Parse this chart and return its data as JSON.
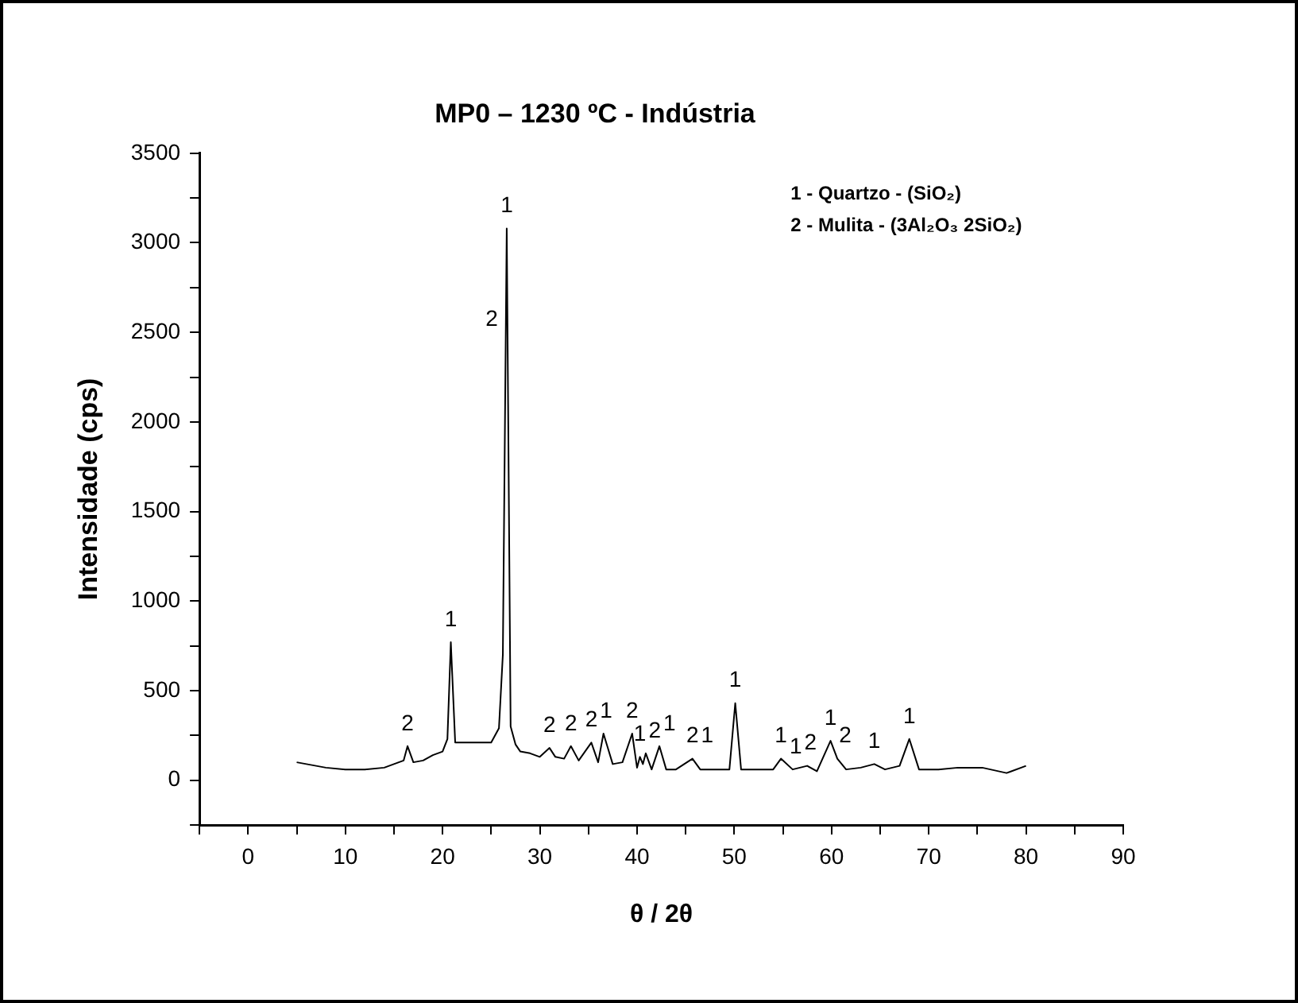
{
  "chart_data": {
    "type": "line",
    "title": "MP0 – 1230 ºC - Indústria",
    "xlabel": "θ / 2θ",
    "ylabel": "Intensidade (cps)",
    "x": [
      5,
      6,
      8,
      10,
      12,
      14,
      15,
      16,
      16.4,
      17,
      18,
      19,
      20,
      20.5,
      20.85,
      21.3,
      22,
      23,
      24,
      25,
      25.8,
      26.2,
      26.6,
      27,
      27.5,
      28,
      29,
      30,
      31,
      31.6,
      32.5,
      33.2,
      34,
      35.3,
      36,
      36.55,
      37.5,
      38.5,
      39.5,
      40,
      40.3,
      40.6,
      40.9,
      41.5,
      42.3,
      43,
      44,
      45.7,
      46.5,
      48,
      49.5,
      50.1,
      50.7,
      52,
      54,
      54.8,
      56,
      57.5,
      58.5,
      59.9,
      60.6,
      61.5,
      63,
      64.4,
      65.5,
      67,
      68,
      69,
      71,
      73,
      75.5,
      78,
      80
    ],
    "series": [
      {
        "color": "#000000",
        "values": [
          100,
          90,
          70,
          60,
          60,
          70,
          90,
          110,
          190,
          100,
          110,
          140,
          160,
          230,
          770,
          210,
          210,
          210,
          210,
          210,
          290,
          700,
          3080,
          300,
          200,
          160,
          150,
          130,
          180,
          130,
          120,
          190,
          110,
          210,
          100,
          260,
          90,
          100,
          260,
          70,
          130,
          90,
          150,
          60,
          190,
          60,
          60,
          120,
          60,
          60,
          60,
          430,
          60,
          60,
          60,
          120,
          60,
          80,
          50,
          220,
          120,
          60,
          70,
          90,
          60,
          80,
          230,
          60,
          60,
          70,
          70,
          40,
          80
        ]
      }
    ],
    "xlim": [
      -5,
      90
    ],
    "xticks": [
      {
        "value": -5,
        "label": null
      },
      0,
      {
        "value": 5,
        "label": null
      },
      10,
      {
        "value": 15,
        "label": null
      },
      20,
      {
        "value": 25,
        "label": null
      },
      30,
      {
        "value": 35,
        "label": null
      },
      40,
      {
        "value": 45,
        "label": null
      },
      50,
      {
        "value": 55,
        "label": null
      },
      60,
      {
        "value": 65,
        "label": null
      },
      70,
      {
        "value": 75,
        "label": null
      },
      80,
      {
        "value": 85,
        "label": null
      },
      90
    ],
    "ylim": [
      -250,
      3500
    ],
    "yticks": [
      {
        "value": -250,
        "label": null
      },
      0,
      {
        "value": 250,
        "label": null
      },
      500,
      {
        "value": 750,
        "label": null
      },
      1000,
      {
        "value": 1250,
        "label": null
      },
      1500,
      {
        "value": 1750,
        "label": null
      },
      2000,
      {
        "value": 2250,
        "label": null
      },
      2500,
      {
        "value": 2750,
        "label": null
      },
      3000,
      {
        "value": 3250,
        "label": null
      },
      3500
    ],
    "grid": false,
    "legend": false,
    "marker": "none",
    "line_style": "solid",
    "annotations": [
      "1 - Quartzo - (SiO₂)",
      "2 - Mulita - (3Al₂O₃ 2SiO₂)",
      {
        "text": "2",
        "x": 16.4,
        "y": 190
      },
      {
        "text": "1",
        "x": 20.85,
        "y": 770
      },
      {
        "text": "2",
        "x": 26.51,
        "y": 2570
      },
      {
        "text": "1",
        "x": 26.6,
        "y": 3080
      },
      {
        "text": "2",
        "x": 31,
        "y": 180
      },
      {
        "text": "2",
        "x": 33.2,
        "y": 190
      },
      {
        "text": "2",
        "x": 35.3,
        "y": 210
      },
      {
        "text": "1",
        "x": 36.55,
        "y": 260
      },
      {
        "text": "2",
        "x": 39.5,
        "y": 260
      },
      {
        "text": "1",
        "x": 40.3,
        "y": 130
      },
      {
        "text": "2",
        "x": 40.9,
        "y": 150
      },
      {
        "text": "1",
        "x": 42.3,
        "y": 190
      },
      {
        "text": "2",
        "x": 45.7,
        "y": 120
      },
      {
        "text": "1",
        "x": 45.7,
        "y": 120
      },
      {
        "text": "1",
        "x": 50.1,
        "y": 430
      },
      {
        "text": "1",
        "x": 54.8,
        "y": 120
      },
      {
        "text": "1",
        "x": 56,
        "y": 60
      },
      {
        "text": "2",
        "x": 57.5,
        "y": 80
      },
      {
        "text": "1",
        "x": 59.9,
        "y": 220
      },
      {
        "text": "2",
        "x": 60.6,
        "y": 120
      },
      {
        "text": "1",
        "x": 64.4,
        "y": 90
      },
      {
        "text": "1",
        "x": 68,
        "y": 230
      }
    ]
  }
}
